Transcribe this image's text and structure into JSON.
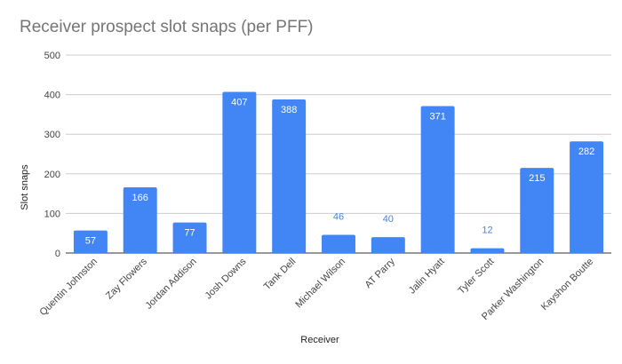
{
  "chart_data": {
    "type": "bar",
    "title": "Receiver prospect slot snaps (per PFF)",
    "xlabel": "Receiver",
    "ylabel": "Slot snaps",
    "ylim": [
      0,
      500
    ],
    "yticks": [
      0,
      100,
      200,
      300,
      400,
      500
    ],
    "grid": true,
    "legend": "none",
    "bar_color": "#4285f4",
    "categories": [
      "Quentin Johnston",
      "Zay Flowers",
      "Jordan Addison",
      "Josh Downs",
      "Tank Dell",
      "Michael Wilson",
      "AT Parry",
      "Jalin Hyatt",
      "Tyler Scott",
      "Parker Washington",
      "Kayshon Boutte"
    ],
    "values": [
      57,
      166,
      77,
      407,
      388,
      46,
      40,
      371,
      12,
      215,
      282
    ]
  }
}
